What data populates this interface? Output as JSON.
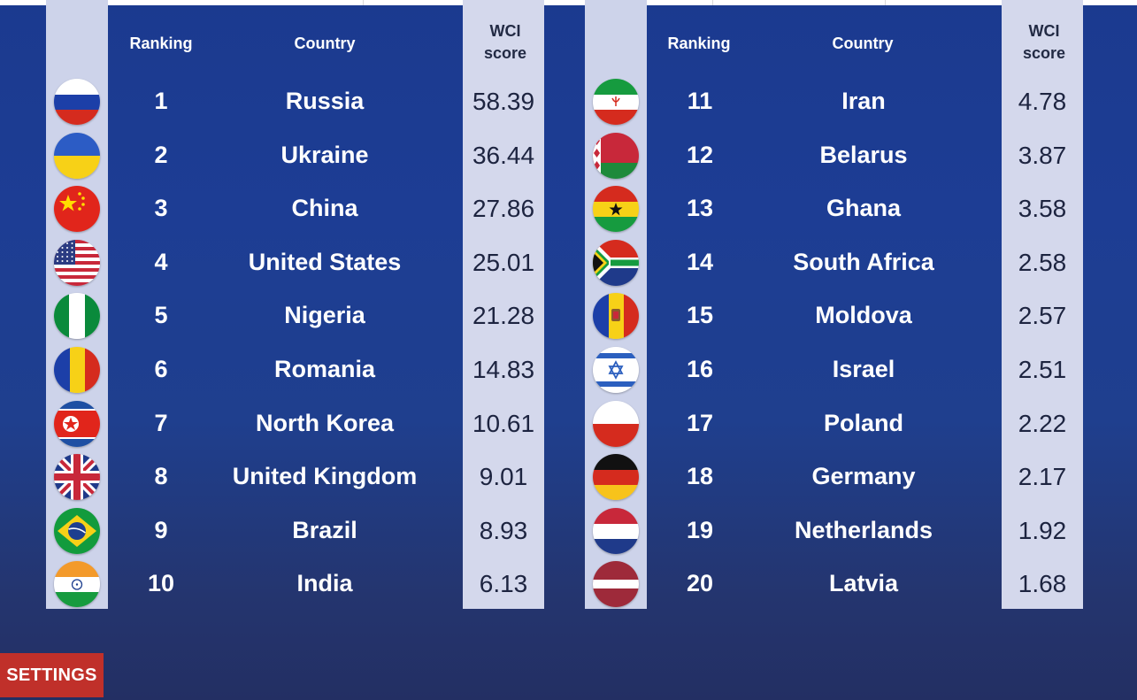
{
  "headers": {
    "ranking": "Ranking",
    "country": "Country",
    "score_line1": "WCI",
    "score_line2": "score"
  },
  "settings_label": "SETTINGS",
  "colors": {
    "background": "#1d3d94",
    "strip": "#cdd3ea",
    "settings_button": "#c0302a"
  },
  "left_table": [
    {
      "rank": "1",
      "country": "Russia",
      "score": "58.39",
      "flag": "russia-flag-icon"
    },
    {
      "rank": "2",
      "country": "Ukraine",
      "score": "36.44",
      "flag": "ukraine-flag-icon"
    },
    {
      "rank": "3",
      "country": "China",
      "score": "27.86",
      "flag": "china-flag-icon"
    },
    {
      "rank": "4",
      "country": "United States",
      "score": "25.01",
      "flag": "usa-flag-icon"
    },
    {
      "rank": "5",
      "country": "Nigeria",
      "score": "21.28",
      "flag": "nigeria-flag-icon"
    },
    {
      "rank": "6",
      "country": "Romania",
      "score": "14.83",
      "flag": "romania-flag-icon"
    },
    {
      "rank": "7",
      "country": "North Korea",
      "score": "10.61",
      "flag": "north-korea-flag-icon"
    },
    {
      "rank": "8",
      "country": "United Kingdom",
      "score": "9.01",
      "flag": "uk-flag-icon"
    },
    {
      "rank": "9",
      "country": "Brazil",
      "score": "8.93",
      "flag": "brazil-flag-icon"
    },
    {
      "rank": "10",
      "country": "India",
      "score": "6.13",
      "flag": "india-flag-icon"
    }
  ],
  "right_table": [
    {
      "rank": "11",
      "country": "Iran",
      "score": "4.78",
      "flag": "iran-flag-icon"
    },
    {
      "rank": "12",
      "country": "Belarus",
      "score": "3.87",
      "flag": "belarus-flag-icon"
    },
    {
      "rank": "13",
      "country": "Ghana",
      "score": "3.58",
      "flag": "ghana-flag-icon"
    },
    {
      "rank": "14",
      "country": "South Africa",
      "score": "2.58",
      "flag": "south-africa-flag-icon"
    },
    {
      "rank": "15",
      "country": "Moldova",
      "score": "2.57",
      "flag": "moldova-flag-icon"
    },
    {
      "rank": "16",
      "country": "Israel",
      "score": "2.51",
      "flag": "israel-flag-icon"
    },
    {
      "rank": "17",
      "country": "Poland",
      "score": "2.22",
      "flag": "poland-flag-icon"
    },
    {
      "rank": "18",
      "country": "Germany",
      "score": "2.17",
      "flag": "germany-flag-icon"
    },
    {
      "rank": "19",
      "country": "Netherlands",
      "score": "1.92",
      "flag": "netherlands-flag-icon"
    },
    {
      "rank": "20",
      "country": "Latvia",
      "score": "1.68",
      "flag": "latvia-flag-icon"
    }
  ]
}
